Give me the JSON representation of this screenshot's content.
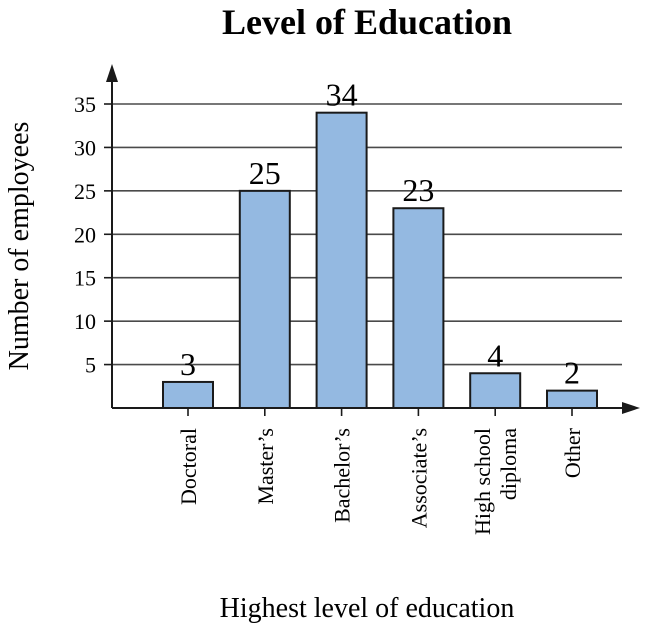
{
  "chart_data": {
    "type": "bar",
    "title": "Level of Education",
    "xlabel": "Highest level of education",
    "ylabel": "Number of employees",
    "categories": [
      [
        "Doctoral"
      ],
      [
        "Master’s"
      ],
      [
        "Bachelor’s"
      ],
      [
        "Associate’s"
      ],
      [
        "High school",
        "diploma"
      ],
      [
        "Other"
      ]
    ],
    "values": [
      3,
      25,
      34,
      23,
      4,
      2
    ],
    "yticks": [
      5,
      10,
      15,
      20,
      25,
      30,
      35
    ],
    "ylim": [
      0,
      35
    ],
    "grid": true,
    "data_labels": true,
    "colors": {
      "bar_fill": "#94b9e1",
      "bar_stroke": "#1a1a1a",
      "grid": "#4a4a4a",
      "axis": "#1a1a1a"
    }
  }
}
